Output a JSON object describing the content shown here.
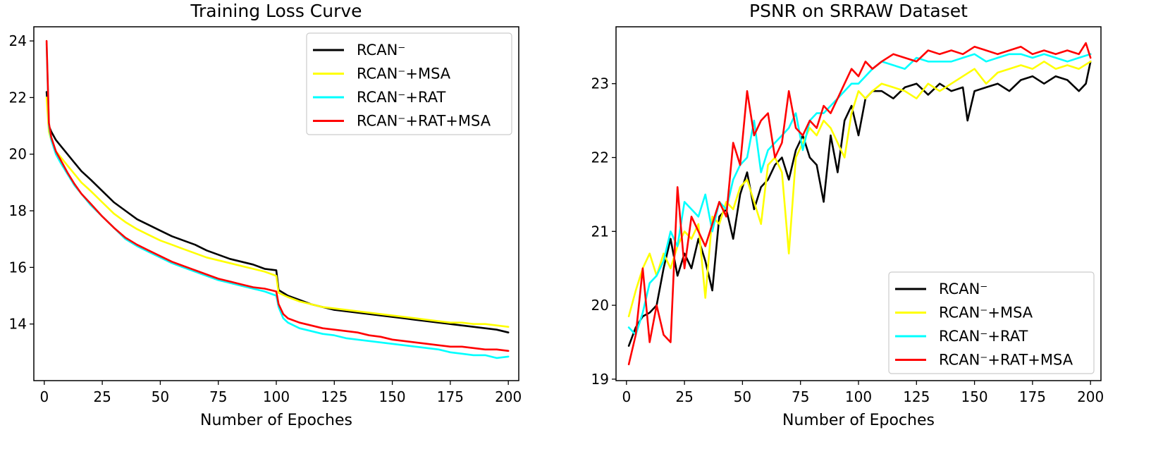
{
  "colors": {
    "black": "#000000",
    "yellow": "#ffff00",
    "cyan": "#00ffff",
    "red": "#ff0000"
  },
  "chart_data": [
    {
      "type": "line",
      "title": "Training Loss Curve",
      "xlabel": "Number of Epoches",
      "ylabel": "",
      "xlim": [
        -4.5,
        204.5
      ],
      "ylim": [
        12.0,
        24.5
      ],
      "xticks": [
        0,
        25,
        50,
        75,
        100,
        125,
        150,
        175,
        200
      ],
      "yticks": [
        14,
        16,
        18,
        20,
        22,
        24
      ],
      "legend": "top-right",
      "series": [
        {
          "name": "RCAN⁻",
          "color": "#000000",
          "x": [
            1,
            2,
            3,
            5,
            7,
            10,
            13,
            16,
            20,
            25,
            30,
            35,
            40,
            45,
            50,
            55,
            60,
            65,
            70,
            75,
            80,
            85,
            90,
            95,
            100,
            101,
            105,
            110,
            115,
            120,
            125,
            130,
            135,
            140,
            145,
            150,
            155,
            160,
            165,
            170,
            175,
            180,
            185,
            190,
            195,
            200
          ],
          "y": [
            22.2,
            21.0,
            20.8,
            20.5,
            20.3,
            20.0,
            19.7,
            19.4,
            19.1,
            18.7,
            18.3,
            18.0,
            17.7,
            17.5,
            17.3,
            17.1,
            16.95,
            16.8,
            16.6,
            16.45,
            16.3,
            16.2,
            16.1,
            15.95,
            15.9,
            15.2,
            15.0,
            14.85,
            14.7,
            14.6,
            14.5,
            14.45,
            14.4,
            14.35,
            14.3,
            14.25,
            14.2,
            14.15,
            14.1,
            14.05,
            14.0,
            13.95,
            13.9,
            13.85,
            13.8,
            13.7
          ]
        },
        {
          "name": "RCAN⁻+MSA",
          "color": "#ffff00",
          "x": [
            1,
            2,
            3,
            5,
            7,
            10,
            13,
            16,
            20,
            25,
            30,
            35,
            40,
            45,
            50,
            55,
            60,
            65,
            70,
            75,
            80,
            85,
            90,
            95,
            100,
            101,
            105,
            110,
            115,
            120,
            125,
            130,
            135,
            140,
            145,
            150,
            155,
            160,
            165,
            170,
            175,
            180,
            185,
            190,
            195,
            200
          ],
          "y": [
            22.0,
            20.8,
            20.5,
            20.1,
            19.9,
            19.6,
            19.3,
            19.0,
            18.7,
            18.3,
            17.9,
            17.6,
            17.35,
            17.15,
            16.95,
            16.8,
            16.65,
            16.5,
            16.35,
            16.25,
            16.15,
            16.05,
            15.95,
            15.85,
            15.7,
            15.1,
            14.95,
            14.8,
            14.7,
            14.6,
            14.55,
            14.5,
            14.45,
            14.4,
            14.35,
            14.3,
            14.25,
            14.2,
            14.15,
            14.1,
            14.05,
            14.05,
            14.0,
            14.0,
            13.95,
            13.9
          ]
        },
        {
          "name": "RCAN⁻+RAT",
          "color": "#00ffff",
          "x": [
            1,
            2,
            3,
            5,
            7,
            10,
            13,
            16,
            20,
            25,
            30,
            35,
            40,
            45,
            50,
            55,
            60,
            65,
            70,
            75,
            80,
            85,
            90,
            95,
            100,
            101,
            103,
            105,
            110,
            115,
            120,
            125,
            130,
            135,
            140,
            145,
            150,
            155,
            160,
            165,
            170,
            175,
            180,
            185,
            190,
            195,
            200
          ],
          "y": [
            23.9,
            21.0,
            20.5,
            20.0,
            19.7,
            19.3,
            18.9,
            18.6,
            18.2,
            17.8,
            17.4,
            17.0,
            16.75,
            16.55,
            16.35,
            16.15,
            16.0,
            15.85,
            15.7,
            15.55,
            15.45,
            15.35,
            15.25,
            15.15,
            15.0,
            14.6,
            14.2,
            14.05,
            13.85,
            13.75,
            13.65,
            13.6,
            13.5,
            13.45,
            13.4,
            13.35,
            13.3,
            13.25,
            13.2,
            13.15,
            13.1,
            13.0,
            12.95,
            12.9,
            12.9,
            12.8,
            12.85
          ]
        },
        {
          "name": "RCAN⁻+RAT+MSA",
          "color": "#ff0000",
          "x": [
            1,
            2,
            3,
            5,
            7,
            10,
            13,
            16,
            20,
            25,
            30,
            35,
            40,
            45,
            50,
            55,
            60,
            65,
            70,
            75,
            80,
            85,
            90,
            95,
            100,
            101,
            103,
            105,
            110,
            115,
            120,
            125,
            130,
            135,
            140,
            145,
            150,
            155,
            160,
            165,
            170,
            175,
            180,
            185,
            190,
            195,
            200
          ],
          "y": [
            24.0,
            21.1,
            20.6,
            20.1,
            19.8,
            19.35,
            18.95,
            18.6,
            18.25,
            17.8,
            17.4,
            17.05,
            16.8,
            16.6,
            16.4,
            16.2,
            16.05,
            15.9,
            15.75,
            15.6,
            15.5,
            15.4,
            15.3,
            15.25,
            15.15,
            14.7,
            14.35,
            14.2,
            14.05,
            13.95,
            13.85,
            13.8,
            13.75,
            13.7,
            13.6,
            13.55,
            13.45,
            13.4,
            13.35,
            13.3,
            13.25,
            13.2,
            13.2,
            13.15,
            13.1,
            13.1,
            13.05
          ]
        }
      ]
    },
    {
      "type": "line",
      "title": "PSNR on SRRAW Dataset",
      "xlabel": "Number of Epoches",
      "ylabel": "",
      "xlim": [
        -4.5,
        204.5
      ],
      "ylim": [
        18.98,
        23.77
      ],
      "xticks": [
        0,
        25,
        50,
        75,
        100,
        125,
        150,
        175,
        200
      ],
      "yticks": [
        19,
        20,
        21,
        22,
        23
      ],
      "legend": "bottom-right",
      "series": [
        {
          "name": "RCAN⁻",
          "color": "#000000",
          "x": [
            1,
            4,
            7,
            10,
            13,
            16,
            19,
            22,
            25,
            28,
            31,
            34,
            37,
            40,
            43,
            46,
            49,
            52,
            55,
            58,
            61,
            64,
            67,
            70,
            73,
            76,
            79,
            82,
            85,
            88,
            91,
            94,
            97,
            100,
            103,
            106,
            110,
            115,
            120,
            125,
            130,
            135,
            140,
            145,
            147,
            150,
            155,
            160,
            165,
            170,
            175,
            180,
            185,
            190,
            195,
            198,
            200
          ],
          "y": [
            19.45,
            19.7,
            19.85,
            19.9,
            20.0,
            20.5,
            20.9,
            20.4,
            20.7,
            20.5,
            20.9,
            20.6,
            20.2,
            21.2,
            21.3,
            20.9,
            21.5,
            21.8,
            21.3,
            21.6,
            21.7,
            21.9,
            22.0,
            21.7,
            22.1,
            22.3,
            22.0,
            21.9,
            21.4,
            22.3,
            21.8,
            22.5,
            22.7,
            22.3,
            22.8,
            22.9,
            22.9,
            22.8,
            22.95,
            23.0,
            22.85,
            23.0,
            22.9,
            22.95,
            22.5,
            22.9,
            22.95,
            23.0,
            22.9,
            23.05,
            23.1,
            23.0,
            23.1,
            23.05,
            22.9,
            23.0,
            23.3
          ]
        },
        {
          "name": "RCAN⁻+MSA",
          "color": "#ffff00",
          "x": [
            1,
            4,
            7,
            10,
            13,
            16,
            19,
            22,
            25,
            28,
            31,
            34,
            37,
            40,
            43,
            46,
            49,
            52,
            55,
            58,
            61,
            64,
            67,
            70,
            73,
            76,
            79,
            82,
            85,
            88,
            91,
            94,
            97,
            100,
            103,
            106,
            110,
            115,
            120,
            125,
            130,
            135,
            140,
            145,
            150,
            155,
            160,
            165,
            170,
            175,
            180,
            185,
            190,
            195,
            200
          ],
          "y": [
            19.85,
            20.2,
            20.5,
            20.7,
            20.4,
            20.7,
            20.5,
            20.8,
            21.0,
            20.9,
            21.1,
            20.1,
            21.2,
            21.1,
            21.4,
            21.3,
            21.6,
            21.7,
            21.4,
            21.1,
            21.9,
            22.0,
            21.8,
            20.7,
            22.0,
            22.2,
            22.4,
            22.3,
            22.5,
            22.4,
            22.2,
            22.0,
            22.6,
            22.9,
            22.8,
            22.9,
            23.0,
            22.95,
            22.9,
            22.8,
            23.0,
            22.9,
            23.0,
            23.1,
            23.2,
            23.0,
            23.15,
            23.2,
            23.25,
            23.2,
            23.3,
            23.2,
            23.25,
            23.2,
            23.3
          ]
        },
        {
          "name": "RCAN⁻+RAT",
          "color": "#00ffff",
          "x": [
            1,
            4,
            7,
            10,
            13,
            16,
            19,
            22,
            25,
            28,
            31,
            34,
            37,
            40,
            43,
            46,
            49,
            52,
            55,
            58,
            61,
            64,
            67,
            70,
            73,
            76,
            79,
            82,
            85,
            88,
            91,
            94,
            97,
            100,
            103,
            106,
            110,
            115,
            120,
            125,
            130,
            135,
            140,
            145,
            150,
            155,
            160,
            165,
            170,
            175,
            180,
            185,
            190,
            195,
            200
          ],
          "y": [
            19.7,
            19.6,
            19.9,
            20.3,
            20.4,
            20.6,
            21.0,
            20.8,
            21.4,
            21.3,
            21.2,
            21.5,
            21.0,
            21.4,
            21.3,
            21.7,
            21.9,
            22.0,
            22.5,
            21.8,
            22.1,
            22.2,
            22.3,
            22.4,
            22.6,
            22.1,
            22.5,
            22.6,
            22.6,
            22.7,
            22.8,
            22.9,
            23.0,
            23.0,
            23.1,
            23.2,
            23.3,
            23.25,
            23.2,
            23.35,
            23.3,
            23.3,
            23.3,
            23.35,
            23.4,
            23.3,
            23.35,
            23.4,
            23.4,
            23.35,
            23.4,
            23.35,
            23.3,
            23.35,
            23.4
          ]
        },
        {
          "name": "RCAN⁻+RAT+MSA",
          "color": "#ff0000",
          "x": [
            1,
            4,
            7,
            10,
            13,
            16,
            19,
            22,
            25,
            28,
            31,
            34,
            37,
            40,
            43,
            46,
            49,
            52,
            55,
            58,
            61,
            64,
            67,
            70,
            73,
            76,
            79,
            82,
            85,
            88,
            91,
            94,
            97,
            100,
            103,
            106,
            110,
            115,
            120,
            125,
            130,
            135,
            140,
            145,
            150,
            155,
            160,
            165,
            170,
            175,
            180,
            185,
            190,
            195,
            198,
            200
          ],
          "y": [
            19.2,
            19.6,
            20.5,
            19.5,
            20.0,
            19.6,
            19.5,
            21.6,
            20.5,
            21.2,
            21.0,
            20.8,
            21.1,
            21.4,
            21.2,
            22.2,
            21.9,
            22.9,
            22.3,
            22.5,
            22.6,
            22.0,
            22.2,
            22.9,
            22.4,
            22.3,
            22.5,
            22.4,
            22.7,
            22.6,
            22.8,
            23.0,
            23.2,
            23.1,
            23.3,
            23.2,
            23.3,
            23.4,
            23.35,
            23.3,
            23.45,
            23.4,
            23.45,
            23.4,
            23.5,
            23.45,
            23.4,
            23.45,
            23.5,
            23.4,
            23.45,
            23.4,
            23.45,
            23.4,
            23.55,
            23.35
          ]
        }
      ]
    }
  ]
}
